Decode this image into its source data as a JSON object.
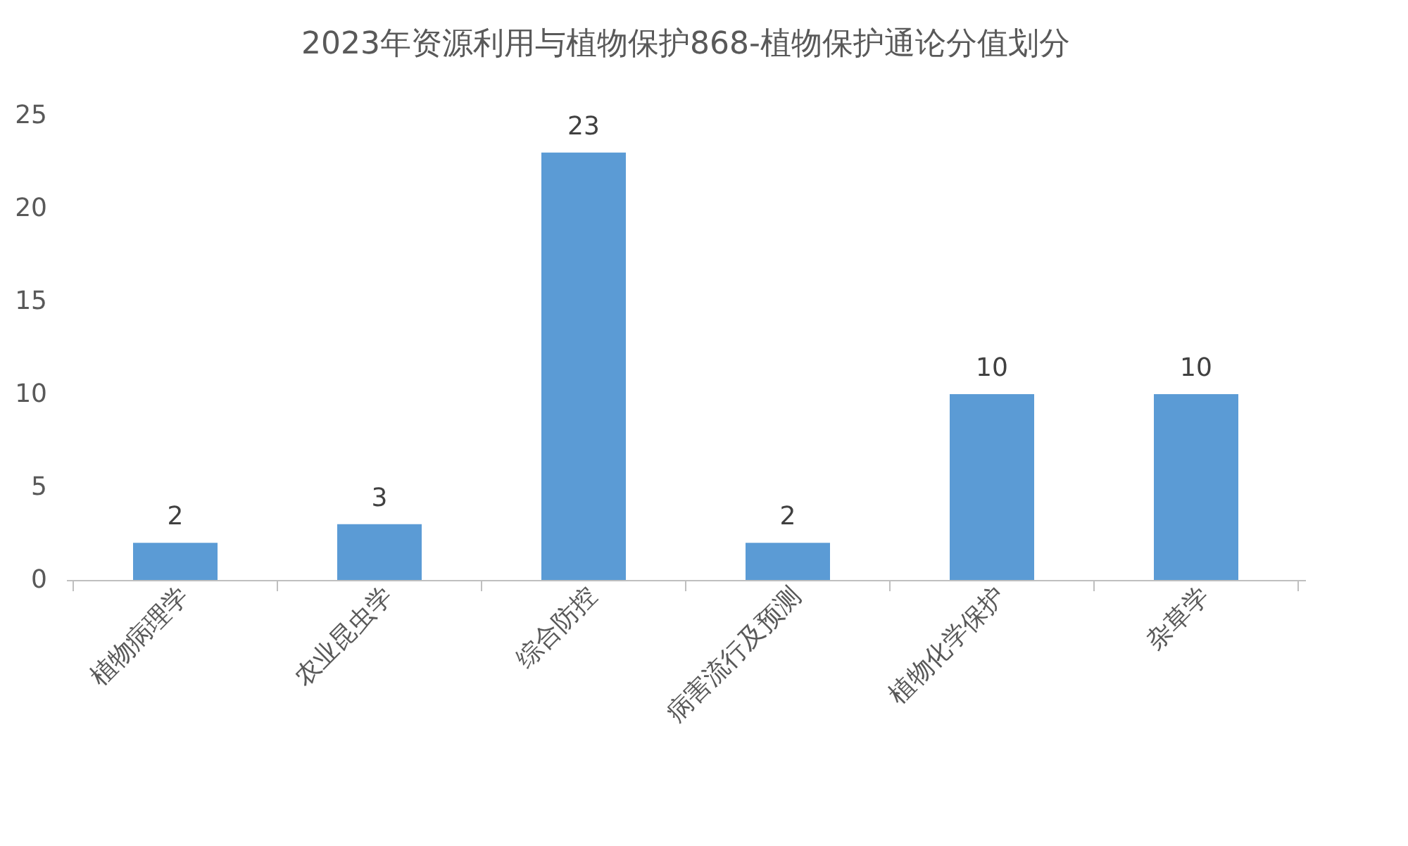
{
  "chart_data": {
    "type": "bar",
    "title": "2023年资源利用与植物保护868-植物保护通论分值划分",
    "categories": [
      "植物病理学",
      "农业昆虫学",
      "综合防控",
      "病害流行及预测",
      "植物化学保护",
      "杂草学"
    ],
    "values": [
      2,
      3,
      23,
      2,
      10,
      10
    ],
    "color": "#5b9bd5",
    "ylim": [
      0,
      25
    ],
    "yticks": [
      0,
      5,
      10,
      15,
      20,
      25
    ],
    "grid": false,
    "data_labels": true
  }
}
